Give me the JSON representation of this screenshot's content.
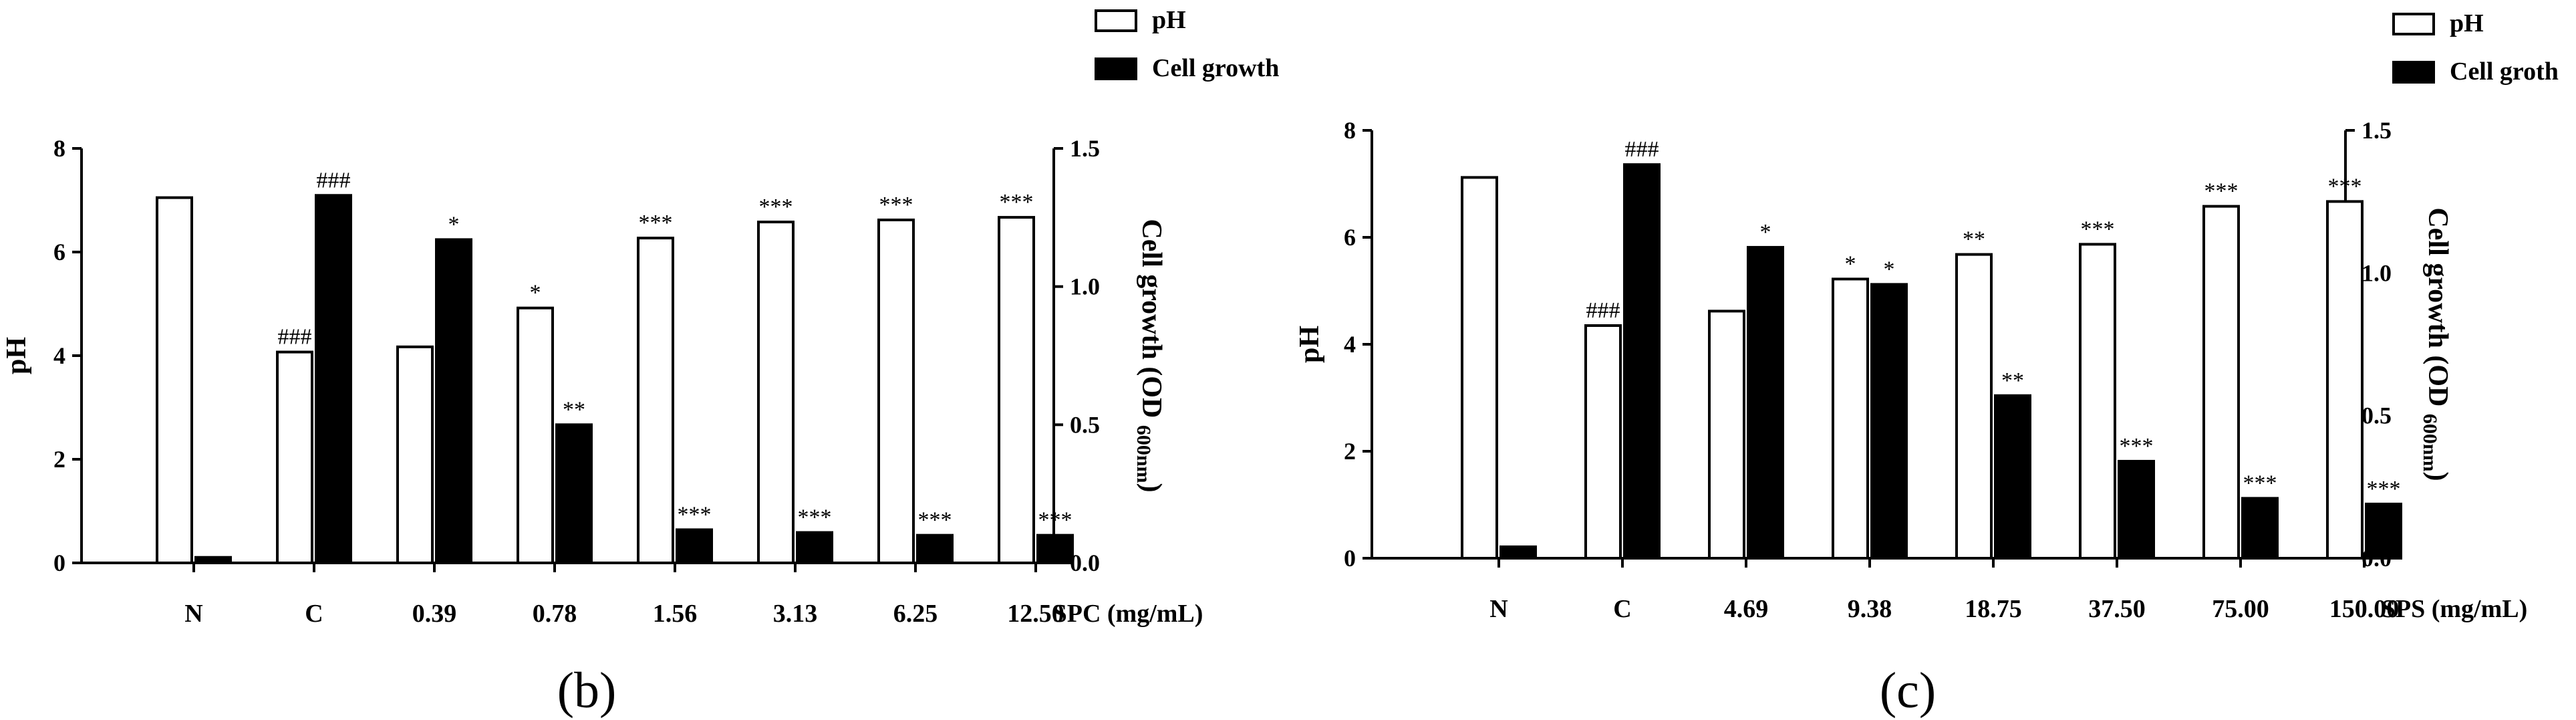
{
  "chart_data": [
    {
      "type": "bar",
      "panel_label": "(b)",
      "categories": [
        "N",
        "C",
        "0.39",
        "0.78",
        "1.56",
        "3.13",
        "6.25",
        "12.50"
      ],
      "xlabel": "SPC (mg/mL)",
      "series": [
        {
          "name": "pH",
          "axis": "left",
          "values": [
            7.05,
            4.07,
            4.17,
            4.92,
            6.27,
            6.58,
            6.62,
            6.67
          ],
          "annotations": [
            "",
            "###",
            "",
            "*",
            "***",
            "***",
            "***",
            "***"
          ]
        },
        {
          "name": "Cell growth",
          "axis": "right",
          "values": [
            0.02,
            1.33,
            1.17,
            0.5,
            0.12,
            0.11,
            0.1,
            0.1
          ],
          "annotations": [
            "",
            "###",
            "*",
            "**",
            "***",
            "***",
            "***",
            "***"
          ]
        }
      ],
      "ylabel_left": "pH",
      "ylim_left": [
        0,
        8
      ],
      "yticks_left": [
        "0",
        "2",
        "4",
        "6",
        "8"
      ],
      "ylabel_right": "Cell growth (OD",
      "ylabel_right_sub": "600nm",
      "ylabel_right_close": ")",
      "ylim_right": [
        0,
        1.5
      ],
      "yticks_right": [
        "0.0",
        "0.5",
        "1.0",
        "1.5"
      ],
      "legend": [
        "pH",
        "Cell growth"
      ]
    },
    {
      "type": "bar",
      "panel_label": "(c)",
      "categories": [
        "N",
        "C",
        "4.69",
        "9.38",
        "18.75",
        "37.50",
        "75.00",
        "150.00"
      ],
      "xlabel": "SPS (mg/mL)",
      "series": [
        {
          "name": "pH",
          "axis": "left",
          "values": [
            7.12,
            4.35,
            4.62,
            5.22,
            5.68,
            5.87,
            6.58,
            6.67
          ],
          "annotations": [
            "",
            "###",
            "",
            "*",
            "**",
            "***",
            "***",
            "***"
          ]
        },
        {
          "name": "Cell groth",
          "axis": "right",
          "values": [
            0.04,
            1.38,
            1.09,
            0.96,
            0.57,
            0.34,
            0.21,
            0.19
          ],
          "annotations": [
            "",
            "###",
            "*",
            "*",
            "**",
            "***",
            "***",
            "***"
          ]
        }
      ],
      "ylabel_left": "pH",
      "ylim_left": [
        0,
        8
      ],
      "yticks_left": [
        "0",
        "2",
        "4",
        "6",
        "8"
      ],
      "ylabel_right": "Cell growth (OD",
      "ylabel_right_sub": "600nm",
      "ylabel_right_close": ")",
      "ylim_right": [
        0,
        1.5
      ],
      "yticks_right": [
        "0.0",
        "0.5",
        "1.0",
        "1.5"
      ],
      "legend": [
        "pH",
        "Cell groth"
      ]
    }
  ],
  "colors": {
    "bar_ph": "#ffffff",
    "bar_growth": "#000000",
    "stroke": "#000000"
  }
}
